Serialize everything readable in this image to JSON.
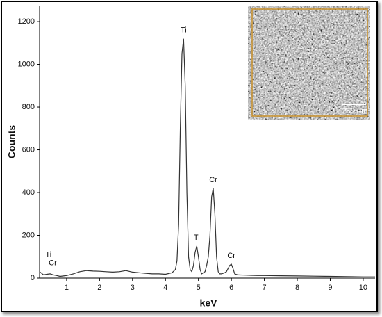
{
  "chart_data": {
    "type": "line",
    "x_label": "keV",
    "y_label": "Counts",
    "x": [
      0.18,
      0.3,
      0.4,
      0.5,
      0.6,
      0.7,
      0.8,
      0.9,
      1.0,
      1.2,
      1.4,
      1.6,
      1.8,
      2.0,
      2.2,
      2.4,
      2.6,
      2.8,
      3.0,
      3.2,
      3.4,
      3.6,
      3.8,
      4.0,
      4.2,
      4.3,
      4.35,
      4.4,
      4.45,
      4.5,
      4.55,
      4.6,
      4.65,
      4.7,
      4.75,
      4.8,
      4.85,
      4.9,
      4.95,
      5.0,
      5.05,
      5.1,
      5.2,
      5.25,
      5.3,
      5.35,
      5.4,
      5.45,
      5.5,
      5.55,
      5.6,
      5.65,
      5.7,
      5.8,
      5.85,
      5.9,
      5.95,
      6.0,
      6.05,
      6.1,
      6.2,
      6.4,
      6.6,
      6.8,
      7.0,
      7.5,
      8.0,
      8.5,
      9.0,
      9.5,
      10.0,
      10.36
    ],
    "values": [
      30,
      15,
      18,
      20,
      15,
      12,
      8,
      10,
      12,
      20,
      30,
      35,
      33,
      32,
      30,
      28,
      30,
      35,
      28,
      25,
      22,
      20,
      20,
      18,
      25,
      40,
      80,
      250,
      700,
      1050,
      1120,
      900,
      400,
      100,
      40,
      30,
      60,
      120,
      150,
      100,
      40,
      20,
      30,
      60,
      100,
      200,
      380,
      420,
      300,
      100,
      30,
      20,
      20,
      25,
      30,
      45,
      60,
      65,
      45,
      20,
      15,
      14,
      13,
      12,
      12,
      11,
      10,
      9,
      8,
      7,
      6,
      6
    ],
    "color": "#333333",
    "xlim": [
      0.18,
      10.36
    ],
    "xticks": [
      1,
      2,
      3,
      4,
      5,
      6,
      7,
      8,
      9,
      10
    ],
    "ylim": [
      0,
      1275
    ],
    "yticks": [
      0,
      200,
      400,
      600,
      800,
      1000,
      1200
    ],
    "annotations": [
      {
        "text": "Ti",
        "x": 4.55,
        "y": 1120
      },
      {
        "text": "Ti",
        "x": 4.95,
        "y": 150
      },
      {
        "text": "Cr",
        "x": 5.45,
        "y": 420
      },
      {
        "text": "Cr",
        "x": 6.0,
        "y": 65
      },
      {
        "text": "Ti",
        "x": 0.45,
        "y": 70
      },
      {
        "text": "Cr",
        "x": 0.58,
        "y": 30
      }
    ],
    "inset_scale_label": "250 µm"
  }
}
